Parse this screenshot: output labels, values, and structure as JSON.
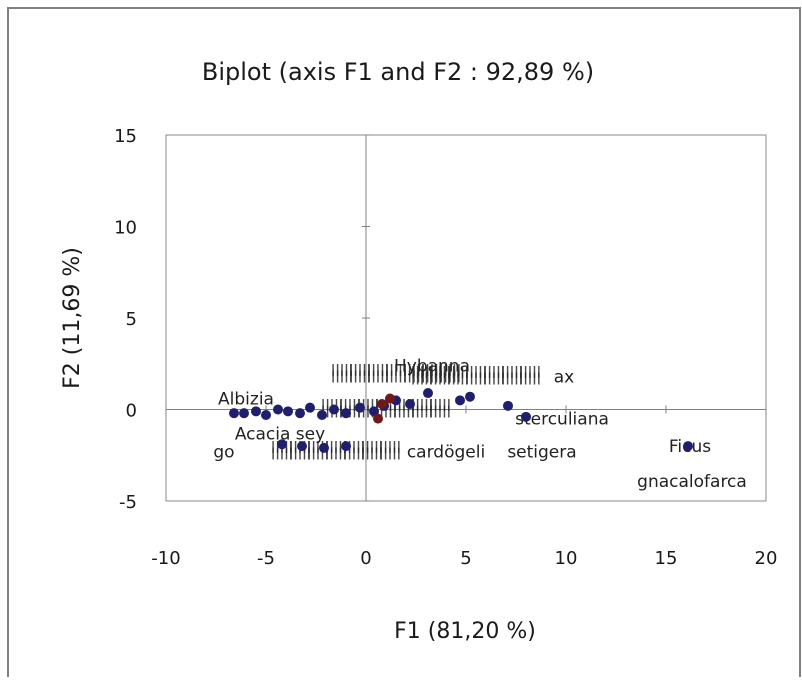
{
  "chart_data": {
    "type": "scatter",
    "title": "Biplot (axis F1 and F2 : 92,89 %)",
    "xlabel": "F1 (81,20 %)",
    "ylabel": "F2 (11,69 %)",
    "xlim": [
      -10,
      20
    ],
    "ylim": [
      -5,
      15
    ],
    "xticks": [
      -10,
      -5,
      0,
      5,
      10,
      15,
      20
    ],
    "yticks": [
      -5,
      0,
      5,
      10,
      15
    ],
    "grid": false,
    "legend": "none",
    "colors": {
      "points": "#1f1f6e",
      "points_dark_red": "#6e1a1a",
      "axis": "#808080",
      "text": "#1a1a1a"
    },
    "series": [
      {
        "points": [
          {
            "x": 16.1,
            "y": -2.0
          },
          {
            "x": 8.0,
            "y": -0.4
          },
          {
            "x": 7.1,
            "y": 0.2
          },
          {
            "x": 5.2,
            "y": 0.7
          },
          {
            "x": 4.7,
            "y": 0.5
          },
          {
            "x": 3.1,
            "y": 0.9
          },
          {
            "x": 2.2,
            "y": 0.3
          },
          {
            "x": 1.5,
            "y": 0.5
          },
          {
            "x": 0.9,
            "y": 0.2
          },
          {
            "x": 0.4,
            "y": -0.1
          },
          {
            "x": -0.3,
            "y": 0.1
          },
          {
            "x": -1.0,
            "y": -0.2
          },
          {
            "x": -1.6,
            "y": 0.0
          },
          {
            "x": -2.2,
            "y": -0.3
          },
          {
            "x": -2.8,
            "y": 0.1
          },
          {
            "x": -3.3,
            "y": -0.2
          },
          {
            "x": -3.9,
            "y": -0.1
          },
          {
            "x": -4.4,
            "y": 0.0
          },
          {
            "x": -5.0,
            "y": -0.3
          },
          {
            "x": -5.5,
            "y": -0.1
          },
          {
            "x": -6.1,
            "y": -0.2
          },
          {
            "x": -6.6,
            "y": -0.2
          },
          {
            "x": -4.2,
            "y": -1.9
          },
          {
            "x": -3.2,
            "y": -2.0
          },
          {
            "x": -2.1,
            "y": -2.1
          },
          {
            "x": -1.0,
            "y": -2.0
          }
        ]
      },
      {
        "points": [
          {
            "x": 0.8,
            "y": 0.3
          },
          {
            "x": 0.6,
            "y": -0.5
          },
          {
            "x": 1.2,
            "y": 0.6
          }
        ]
      }
    ],
    "labels": [
      {
        "text": "Ficus",
        "x": 16.2,
        "y": -2.0
      },
      {
        "text": "gnacalofarca",
        "x": 16.3,
        "y": -3.9
      },
      {
        "text": "setigera",
        "x": 8.8,
        "y": -2.3
      },
      {
        "text": "sterculiana",
        "x": 9.8,
        "y": -0.5
      },
      {
        "text": "Hybanna",
        "x": 3.3,
        "y": 2.4
      },
      {
        "text": "ax",
        "x": 9.9,
        "y": 1.8
      },
      {
        "text": "Albizia",
        "x": -6.0,
        "y": 0.6
      },
      {
        "text": "Acacia sey",
        "x": -4.3,
        "y": -1.3
      },
      {
        "text": "go",
        "x": -7.1,
        "y": -2.3
      },
      {
        "text": "cardögeli",
        "x": 4.0,
        "y": -2.3
      }
    ],
    "label_clusters": [
      {
        "x": 1.5,
        "y": 1.9
      },
      {
        "x": 1.0,
        "y": 0.0
      },
      {
        "x": -1.5,
        "y": -2.3
      },
      {
        "x": 5.5,
        "y": 1.8
      }
    ]
  }
}
